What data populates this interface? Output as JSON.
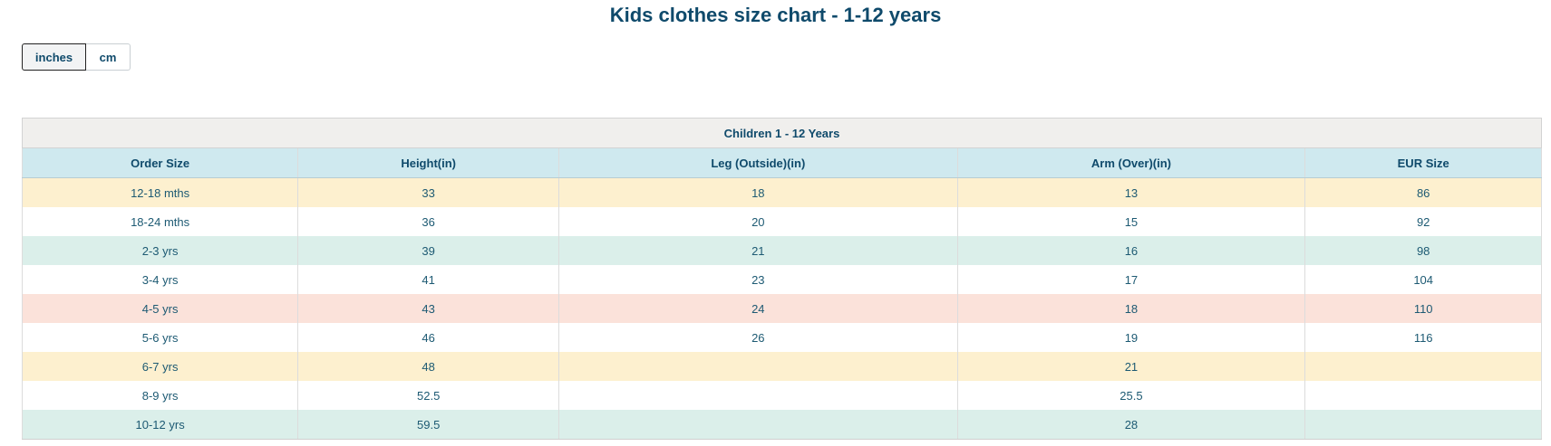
{
  "title": "Kids clothes size chart - 1-12 years",
  "unit_toggle": {
    "options": [
      "inches",
      "cm"
    ],
    "selected": "inches"
  },
  "table": {
    "caption": "Children 1 - 12 Years",
    "columns": [
      "Order Size",
      "Height(in)",
      "Leg (Outside)(in)",
      "Arm (Over)(in)",
      "EUR Size"
    ],
    "rows": [
      {
        "cells": [
          "12-18 mths",
          "33",
          "18",
          "13",
          "86"
        ],
        "color": "yellow"
      },
      {
        "cells": [
          "18-24 mths",
          "36",
          "20",
          "15",
          "92"
        ],
        "color": "white"
      },
      {
        "cells": [
          "2-3 yrs",
          "39",
          "21",
          "16",
          "98"
        ],
        "color": "green"
      },
      {
        "cells": [
          "3-4 yrs",
          "41",
          "23",
          "17",
          "104"
        ],
        "color": "white"
      },
      {
        "cells": [
          "4-5 yrs",
          "43",
          "24",
          "18",
          "110"
        ],
        "color": "pink"
      },
      {
        "cells": [
          "5-6 yrs",
          "46",
          "26",
          "19",
          "116"
        ],
        "color": "white"
      },
      {
        "cells": [
          "6-7 yrs",
          "48",
          "",
          "21",
          ""
        ],
        "color": "yellow"
      },
      {
        "cells": [
          "8-9 yrs",
          "52.5",
          "",
          "25.5",
          ""
        ],
        "color": "white"
      },
      {
        "cells": [
          "10-12 yrs",
          "59.5",
          "",
          "28",
          ""
        ],
        "color": "green"
      }
    ]
  },
  "colors": {
    "title_text": "#0f4a6b",
    "header_bg": "#cfe9ef",
    "caption_bg": "#f0efed",
    "row_yellow": "#fdf0cf",
    "row_green": "#dbefea",
    "row_pink": "#fbe2da",
    "row_white": "#ffffff"
  }
}
